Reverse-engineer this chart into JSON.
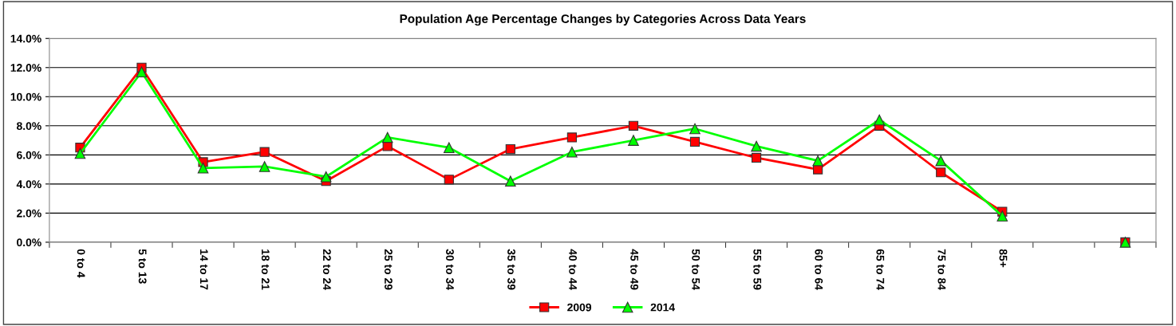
{
  "chart_data": {
    "type": "line",
    "title": "Population Age Percentage Changes by Categories Across Data Years",
    "categories": [
      "0 to 4",
      "5 to 13",
      "14 to 17",
      "18 to 21",
      "22 to 24",
      "25 to 29",
      "30 to 34",
      "35 to 39",
      "40 to 44",
      "45 to 49",
      "50 to 54",
      "55 to 59",
      "60 to 64",
      "65 to 74",
      "75 to 84",
      "85+",
      null,
      null
    ],
    "series": [
      {
        "name": "2009",
        "color": "#ff0000",
        "marker": "square",
        "values": [
          6.5,
          12.0,
          5.5,
          6.2,
          4.2,
          6.6,
          4.3,
          6.4,
          7.2,
          8.0,
          6.9,
          5.8,
          5.0,
          8.0,
          4.8,
          2.1,
          null,
          0
        ]
      },
      {
        "name": "2014",
        "color": "#00ff00",
        "marker": "triangle",
        "values": [
          6.1,
          11.7,
          5.1,
          5.2,
          4.5,
          7.2,
          6.5,
          4.2,
          6.2,
          7.0,
          7.8,
          6.6,
          5.6,
          8.4,
          5.6,
          1.8,
          null,
          0
        ]
      }
    ],
    "ylim": [
      0,
      14
    ],
    "yticks": [
      {
        "value": 0,
        "label": "0.0%"
      },
      {
        "value": 2,
        "label": "2.0%"
      },
      {
        "value": 4,
        "label": "4.0%"
      },
      {
        "value": 6,
        "label": "6.0%"
      },
      {
        "value": 8,
        "label": "8.0%"
      },
      {
        "value": 10,
        "label": "10.0%"
      },
      {
        "value": 12,
        "label": "12.0%"
      },
      {
        "value": 14,
        "label": "14.0%"
      }
    ],
    "grid": "y",
    "legend": "bottom",
    "line_style": "solid"
  }
}
